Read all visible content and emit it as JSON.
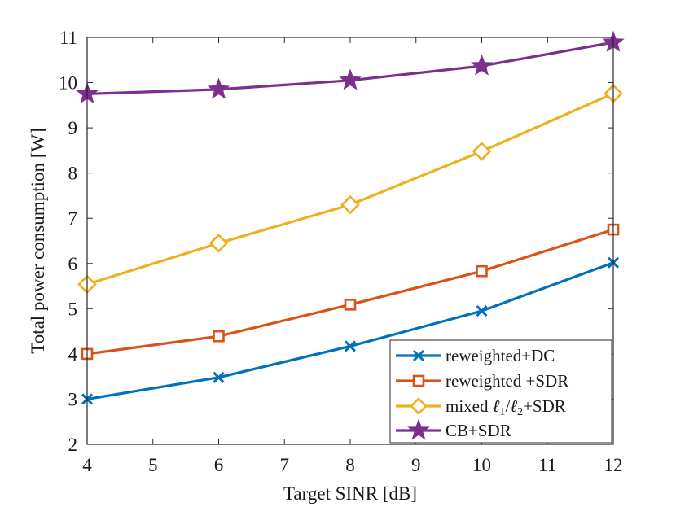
{
  "chart_data": {
    "type": "line",
    "title": "",
    "xlabel": "Target SINR [dB]",
    "ylabel": "Total power consumption [W]",
    "xlim": [
      4,
      12
    ],
    "ylim": [
      2,
      11
    ],
    "xticks": [
      4,
      5,
      6,
      7,
      8,
      9,
      10,
      11,
      12
    ],
    "yticks": [
      2,
      3,
      4,
      5,
      6,
      7,
      8,
      9,
      10,
      11
    ],
    "legend_position": "bottom-right",
    "grid": false,
    "x": [
      4,
      6,
      8,
      10,
      12
    ],
    "series": [
      {
        "name": "reweighted+DC",
        "marker": "x",
        "color": "#0072BD",
        "values": [
          3.0,
          3.48,
          4.17,
          4.95,
          6.02
        ]
      },
      {
        "name": "reweighted +SDR",
        "marker": "square",
        "color": "#D95319",
        "values": [
          4.0,
          4.39,
          5.09,
          5.83,
          6.75
        ]
      },
      {
        "name": "mixed ℓ1/ℓ2+SDR",
        "marker": "diamond",
        "color": "#EDB120",
        "values": [
          5.54,
          6.45,
          7.3,
          8.48,
          9.76
        ]
      },
      {
        "name": "CB+SDR",
        "marker": "star",
        "color": "#7E2F8E",
        "values": [
          9.75,
          9.85,
          10.05,
          10.37,
          10.89
        ]
      }
    ],
    "legend_labels": {
      "s0": "reweighted+DC",
      "s1": "reweighted +SDR",
      "s2_prefix": "mixed ",
      "s2_l1": "ℓ",
      "s2_sub1": "1",
      "s2_slash": "/",
      "s2_l2": "ℓ",
      "s2_sub2": "2",
      "s2_suffix": "+SDR",
      "s3": "CB+SDR"
    }
  }
}
